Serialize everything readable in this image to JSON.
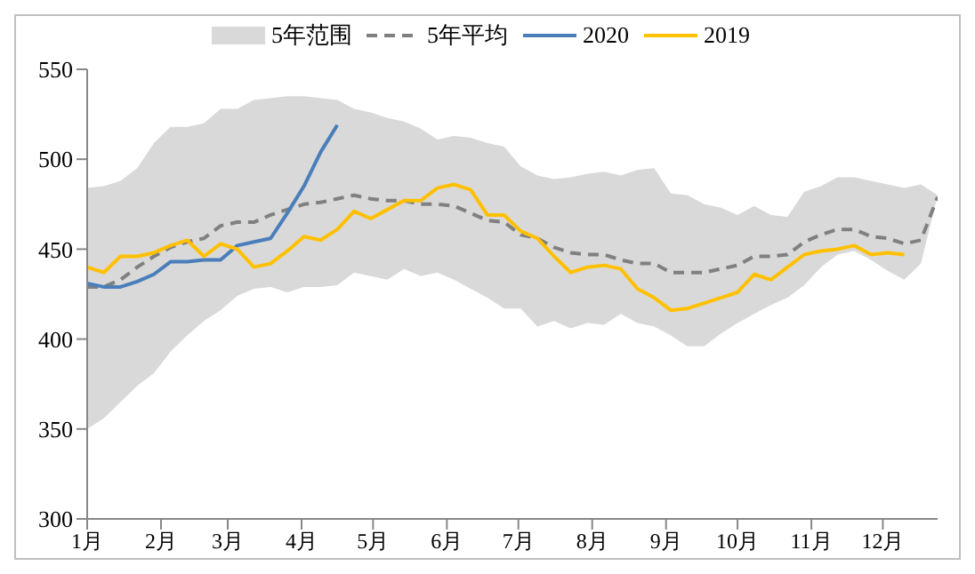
{
  "chart_data": {
    "type": "line",
    "legend": "top",
    "grid": false,
    "marker": "none",
    "x": [
      "--01-01",
      "--01-08",
      "--01-15",
      "--01-22",
      "--01-29",
      "--02-05",
      "--02-12",
      "--02-19",
      "--02-26",
      "--03-05",
      "--03-12",
      "--03-19",
      "--03-26",
      "--04-02",
      "--04-09",
      "--04-16",
      "--04-23",
      "--04-30",
      "--05-07",
      "--05-14",
      "--05-21",
      "--05-28",
      "--06-04",
      "--06-11",
      "--06-18",
      "--06-25",
      "--07-02",
      "--07-09",
      "--07-16",
      "--07-23",
      "--07-30",
      "--08-06",
      "--08-13",
      "--08-20",
      "--08-27",
      "--09-03",
      "--09-10",
      "--09-17",
      "--09-24",
      "--10-01",
      "--10-08",
      "--10-15",
      "--10-22",
      "--10-29",
      "--11-05",
      "--11-12",
      "--11-19",
      "--11-26",
      "--12-03",
      "--12-10",
      "--12-17",
      "--12-24"
    ],
    "xlim": [
      "--01-01",
      "--12-24"
    ],
    "xticks": [
      {
        "value": "--01-01",
        "label": "1月"
      },
      {
        "value": "--02-01",
        "label": "2月"
      },
      {
        "value": "--03-01",
        "label": "3月"
      },
      {
        "value": "--04-01",
        "label": "4月"
      },
      {
        "value": "--05-01",
        "label": "5月"
      },
      {
        "value": "--06-01",
        "label": "6月"
      },
      {
        "value": "--07-01",
        "label": "7月"
      },
      {
        "value": "--08-01",
        "label": "8月"
      },
      {
        "value": "--09-01",
        "label": "9月"
      },
      {
        "value": "--10-01",
        "label": "10月"
      },
      {
        "value": "--11-01",
        "label": "11月"
      },
      {
        "value": "--12-01",
        "label": "12月"
      }
    ],
    "ylim": [
      300,
      550
    ],
    "yticks": [
      300,
      350,
      400,
      450,
      500,
      550
    ],
    "series": [
      {
        "name": "5年范围",
        "type": "area",
        "color": "#d9d9d9",
        "values": [
          null,
          null,
          null,
          null,
          null,
          null,
          null,
          null,
          null,
          null,
          null,
          null,
          null,
          null,
          null,
          null,
          null,
          null,
          null,
          null,
          null,
          null,
          null,
          null,
          null,
          null,
          null,
          null,
          null,
          null,
          null,
          null,
          null,
          null,
          null,
          null,
          null,
          null,
          null,
          null,
          null,
          null,
          null,
          null,
          null,
          null,
          null,
          null,
          null,
          null,
          null,
          null
        ],
        "lower": [
          350,
          356,
          365,
          374,
          381,
          393,
          402,
          410,
          416,
          424,
          428,
          429,
          426,
          429,
          429,
          430,
          437,
          435,
          433,
          439,
          435,
          437,
          433,
          428,
          423,
          417,
          417,
          407,
          410,
          406,
          409,
          408,
          414,
          409,
          407,
          402,
          396,
          396,
          403,
          409,
          414,
          419,
          423,
          430,
          440,
          447,
          449,
          444,
          438,
          433,
          442,
          480
        ],
        "upper": [
          484,
          485,
          488,
          495,
          509,
          518,
          518,
          520,
          528,
          528,
          533,
          534,
          535,
          535,
          534,
          533,
          528,
          526,
          523,
          521,
          517,
          511,
          513,
          512,
          509,
          507,
          496,
          491,
          489,
          490,
          492,
          493,
          491,
          494,
          495,
          481,
          480,
          475,
          473,
          469,
          474,
          469,
          468,
          482,
          485,
          490,
          490,
          488,
          486,
          484,
          486,
          480
        ]
      },
      {
        "name": "5年平均",
        "line_style": "dashed",
        "color": "#808080",
        "values": [
          429,
          429,
          433,
          440,
          446,
          451,
          454,
          456,
          463,
          465,
          465,
          469,
          472,
          475,
          476,
          478,
          480,
          478,
          477,
          477,
          475,
          475,
          474,
          470,
          466,
          465,
          458,
          456,
          451,
          448,
          447,
          447,
          444,
          442,
          442,
          437,
          437,
          437,
          439,
          441,
          446,
          446,
          447,
          454,
          458,
          461,
          461,
          457,
          456,
          453,
          455,
          479
        ]
      },
      {
        "name": "2020",
        "color": "#4a7ebb",
        "values": [
          431,
          429,
          429,
          432,
          436,
          443,
          443,
          444,
          444,
          452,
          454,
          456,
          470,
          485,
          504,
          519,
          null,
          null,
          null,
          null,
          null,
          null,
          null,
          null,
          null,
          null,
          null,
          null,
          null,
          null,
          null,
          null,
          null,
          null,
          null,
          null,
          null,
          null,
          null,
          null,
          null,
          null,
          null,
          null,
          null,
          null,
          null,
          null,
          null,
          null,
          null,
          null
        ]
      },
      {
        "name": "2019",
        "color": "#ffc000",
        "values": [
          440,
          437,
          446,
          446,
          448,
          452,
          455,
          446,
          453,
          450,
          440,
          442,
          449,
          457,
          455,
          461,
          471,
          467,
          472,
          477,
          477,
          484,
          486,
          483,
          469,
          469,
          460,
          456,
          446,
          437,
          440,
          441,
          439,
          428,
          423,
          416,
          417,
          420,
          423,
          426,
          436,
          433,
          440,
          447,
          449,
          450,
          452,
          447,
          448,
          447,
          null,
          null
        ]
      }
    ]
  }
}
